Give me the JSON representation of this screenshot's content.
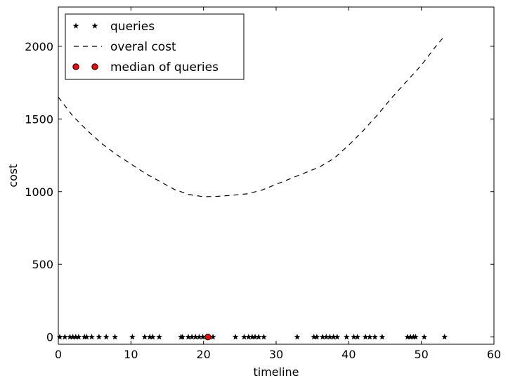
{
  "chart_data": {
    "type": "scatter",
    "title": "",
    "xlabel": "timeline",
    "ylabel": "cost",
    "xlim": [
      0,
      60
    ],
    "ylim": [
      -50,
      2270
    ],
    "xticks": [
      "0",
      "10",
      "20",
      "30",
      "40",
      "50",
      "60"
    ],
    "yticks": [
      "0",
      "500",
      "1000",
      "1500",
      "2000"
    ],
    "grid": false,
    "legend_position": "top-left",
    "legend": [
      {
        "label": "queries",
        "marker": "star",
        "color": "#000000"
      },
      {
        "label": "overal cost",
        "marker": "dashed-line",
        "color": "#000000"
      },
      {
        "label": "median of queries",
        "marker": "circle",
        "color": "#ff0000"
      }
    ],
    "series": [
      {
        "name": "queries",
        "type": "scatter",
        "marker": "star",
        "color": "#000000",
        "x": [
          0.2,
          0.9,
          1.6,
          2.0,
          2.4,
          2.8,
          3.6,
          3.9,
          4.6,
          5.6,
          6.6,
          7.8,
          10.2,
          11.9,
          12.6,
          13.0,
          13.9,
          16.9,
          17.1,
          17.9,
          18.4,
          18.9,
          19.4,
          19.9,
          20.4,
          20.8,
          21.3,
          24.4,
          25.6,
          26.2,
          26.7,
          27.1,
          27.6,
          28.3,
          32.9,
          35.2,
          35.6,
          36.4,
          36.9,
          37.4,
          37.9,
          38.4,
          39.7,
          40.7,
          41.2,
          42.3,
          42.9,
          43.6,
          44.6,
          48.1,
          48.5,
          48.9,
          49.2,
          50.4,
          53.2
        ],
        "y": [
          0,
          0,
          0,
          0,
          0,
          0,
          0,
          0,
          0,
          0,
          0,
          0,
          0,
          0,
          0,
          0,
          0,
          0,
          0,
          0,
          0,
          0,
          0,
          0,
          0,
          0,
          0,
          0,
          0,
          0,
          0,
          0,
          0,
          0,
          0,
          0,
          0,
          0,
          0,
          0,
          0,
          0,
          0,
          0,
          0,
          0,
          0,
          0,
          0,
          0,
          0,
          0,
          0,
          0,
          0
        ]
      },
      {
        "name": "overal cost",
        "type": "line",
        "style": "dashed",
        "color": "#000000",
        "x": [
          0,
          2,
          4,
          6,
          8,
          10,
          12,
          14,
          16,
          18,
          20,
          22,
          24,
          26,
          28,
          30,
          32,
          34,
          36,
          38,
          40,
          42,
          44,
          46,
          48,
          50,
          52,
          53.2
        ],
        "y": [
          1650,
          1520,
          1420,
          1330,
          1255,
          1190,
          1125,
          1070,
          1015,
          980,
          965,
          968,
          975,
          985,
          1010,
          1050,
          1090,
          1130,
          1170,
          1230,
          1320,
          1420,
          1530,
          1650,
          1760,
          1870,
          2000,
          2070
        ]
      },
      {
        "name": "median of queries",
        "type": "scatter",
        "marker": "circle",
        "color": "#ff0000",
        "x": [
          20.6
        ],
        "y": [
          0
        ]
      }
    ]
  }
}
